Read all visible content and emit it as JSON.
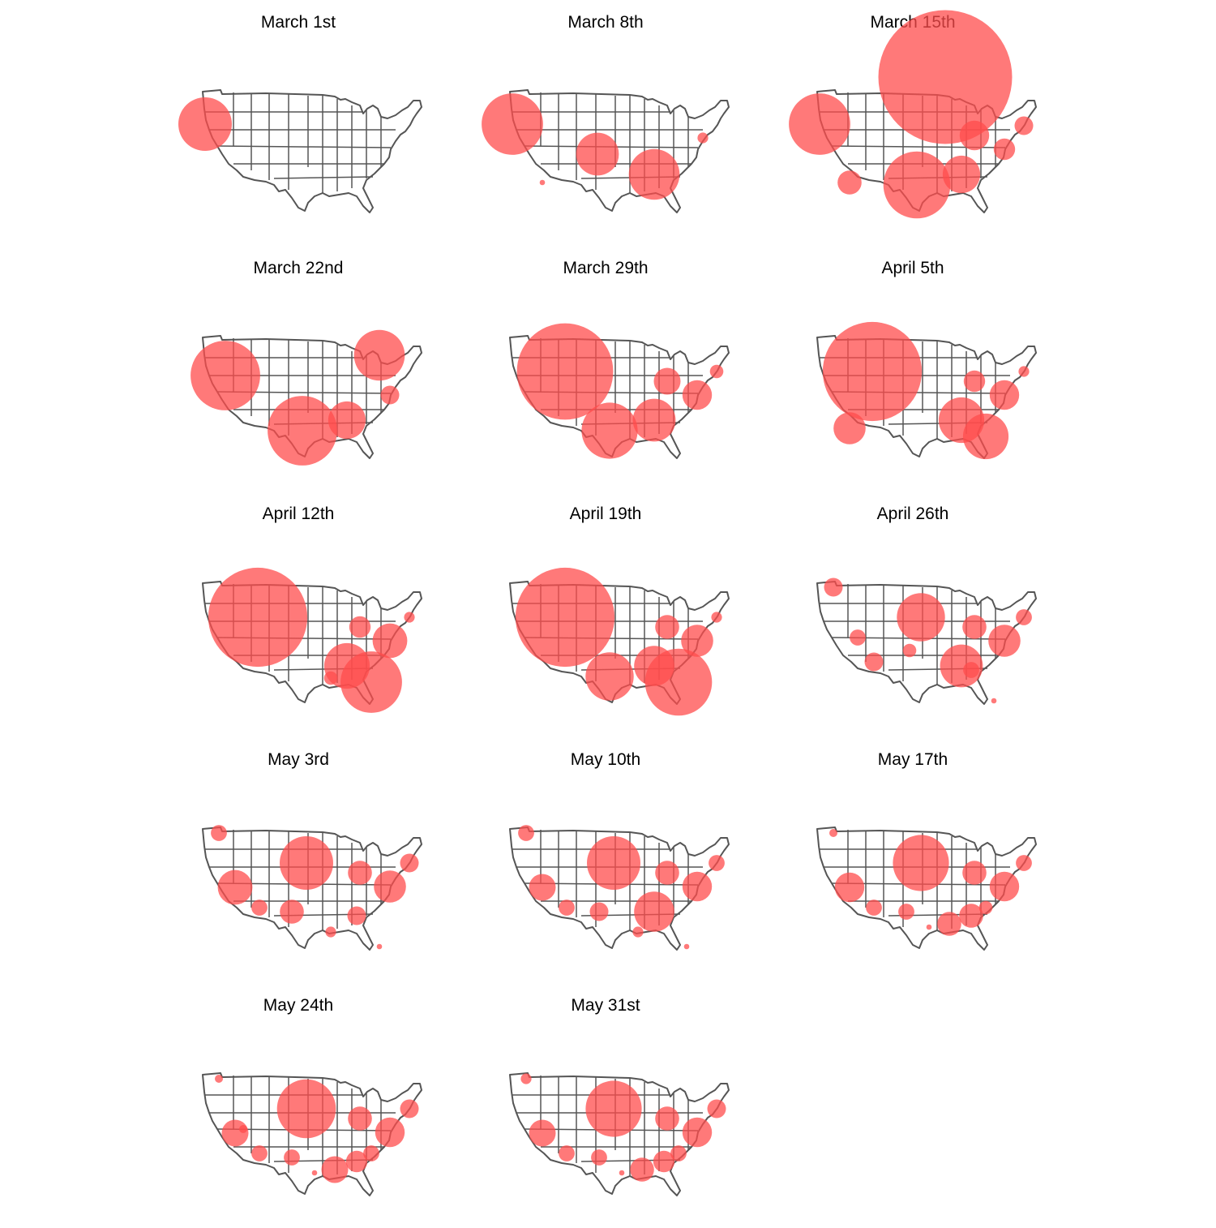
{
  "page": {
    "background": "#ffffff",
    "map_stroke_color": "#555555",
    "bubble_color": "#ff4c4c",
    "bubble_opacity": 0.75
  },
  "panels": [
    {
      "title": "March 1st",
      "bubbles": [
        {
          "region": "pacific-northwest",
          "size": 1.0
        }
      ]
    },
    {
      "title": "March 8th",
      "bubbles": [
        {
          "region": "pacific-northwest",
          "size": 1.15
        },
        {
          "region": "southern-california",
          "size": 0.1
        },
        {
          "region": "southwest",
          "size": 0.8
        },
        {
          "region": "deep-south",
          "size": 0.95
        },
        {
          "region": "northeast",
          "size": 0.2
        }
      ]
    },
    {
      "title": "March 15th",
      "bubbles": [
        {
          "region": "pacific-northwest",
          "size": 1.15
        },
        {
          "region": "northern-plains",
          "size": 2.5
        },
        {
          "region": "southern-california",
          "size": 0.45
        },
        {
          "region": "texas",
          "size": 1.25
        },
        {
          "region": "great-lakes",
          "size": 0.55
        },
        {
          "region": "deep-south",
          "size": 0.7
        },
        {
          "region": "mid-atlantic",
          "size": 0.4
        },
        {
          "region": "new-england",
          "size": 0.35
        }
      ]
    },
    {
      "title": "March 22nd",
      "bubbles": [
        {
          "region": "west-coast",
          "size": 1.3
        },
        {
          "region": "texas",
          "size": 1.3
        },
        {
          "region": "michigan",
          "size": 0.95
        },
        {
          "region": "deep-south",
          "size": 0.7
        },
        {
          "region": "mid-atlantic",
          "size": 0.35
        }
      ]
    },
    {
      "title": "March 29th",
      "bubbles": [
        {
          "region": "northwest-large",
          "size": 1.8
        },
        {
          "region": "texas",
          "size": 1.05
        },
        {
          "region": "deep-south",
          "size": 0.8
        },
        {
          "region": "great-lakes",
          "size": 0.5
        },
        {
          "region": "mid-atlantic",
          "size": 0.55
        },
        {
          "region": "new-england",
          "size": 0.25
        }
      ]
    },
    {
      "title": "April 5th",
      "bubbles": [
        {
          "region": "northwest-large",
          "size": 1.85
        },
        {
          "region": "southern-california",
          "size": 0.6
        },
        {
          "region": "deep-south",
          "size": 0.85
        },
        {
          "region": "florida",
          "size": 0.85
        },
        {
          "region": "great-lakes",
          "size": 0.4
        },
        {
          "region": "mid-atlantic",
          "size": 0.55
        },
        {
          "region": "new-england",
          "size": 0.2
        }
      ]
    },
    {
      "title": "April 12th",
      "bubbles": [
        {
          "region": "northwest-large",
          "size": 1.85
        },
        {
          "region": "deep-south",
          "size": 0.85
        },
        {
          "region": "florida",
          "size": 1.15
        },
        {
          "region": "great-lakes",
          "size": 0.4
        },
        {
          "region": "mid-atlantic",
          "size": 0.65
        },
        {
          "region": "new-england",
          "size": 0.2
        },
        {
          "region": "gulf-coast",
          "size": 0.25
        }
      ]
    },
    {
      "title": "April 19th",
      "bubbles": [
        {
          "region": "northwest-large",
          "size": 1.85
        },
        {
          "region": "texas",
          "size": 0.9
        },
        {
          "region": "deep-south",
          "size": 0.75
        },
        {
          "region": "florida",
          "size": 1.25
        },
        {
          "region": "great-lakes",
          "size": 0.45
        },
        {
          "region": "mid-atlantic",
          "size": 0.6
        },
        {
          "region": "new-england",
          "size": 0.2
        }
      ]
    },
    {
      "title": "April 26th",
      "bubbles": [
        {
          "region": "seattle",
          "size": 0.35
        },
        {
          "region": "nevada",
          "size": 0.3
        },
        {
          "region": "arizona",
          "size": 0.35
        },
        {
          "region": "central-plains",
          "size": 0.9
        },
        {
          "region": "oklahoma",
          "size": 0.25
        },
        {
          "region": "deep-south",
          "size": 0.8
        },
        {
          "region": "great-lakes",
          "size": 0.45
        },
        {
          "region": "mid-atlantic",
          "size": 0.6
        },
        {
          "region": "new-england",
          "size": 0.3
        },
        {
          "region": "georgia",
          "size": 0.3
        },
        {
          "region": "south-florida",
          "size": 0.1
        }
      ]
    },
    {
      "title": "May 3rd",
      "bubbles": [
        {
          "region": "seattle",
          "size": 0.3
        },
        {
          "region": "california-central",
          "size": 0.65
        },
        {
          "region": "arizona",
          "size": 0.3
        },
        {
          "region": "central-plains",
          "size": 1.0
        },
        {
          "region": "texas-panhandle",
          "size": 0.45
        },
        {
          "region": "louisiana",
          "size": 0.2
        },
        {
          "region": "great-lakes",
          "size": 0.45
        },
        {
          "region": "mid-atlantic",
          "size": 0.6
        },
        {
          "region": "new-england",
          "size": 0.35
        },
        {
          "region": "georgia",
          "size": 0.35
        },
        {
          "region": "south-florida",
          "size": 0.1
        }
      ]
    },
    {
      "title": "May 10th",
      "bubbles": [
        {
          "region": "seattle",
          "size": 0.3
        },
        {
          "region": "california-central",
          "size": 0.5
        },
        {
          "region": "arizona",
          "size": 0.3
        },
        {
          "region": "central-plains",
          "size": 1.0
        },
        {
          "region": "texas-panhandle",
          "size": 0.35
        },
        {
          "region": "deep-south",
          "size": 0.75
        },
        {
          "region": "louisiana",
          "size": 0.2
        },
        {
          "region": "great-lakes",
          "size": 0.45
        },
        {
          "region": "mid-atlantic",
          "size": 0.55
        },
        {
          "region": "new-england",
          "size": 0.3
        },
        {
          "region": "south-florida",
          "size": 0.1
        }
      ]
    },
    {
      "title": "May 17th",
      "bubbles": [
        {
          "region": "seattle",
          "size": 0.15
        },
        {
          "region": "california-central",
          "size": 0.55
        },
        {
          "region": "arizona",
          "size": 0.3
        },
        {
          "region": "central-plains",
          "size": 1.05
        },
        {
          "region": "texas-panhandle",
          "size": 0.3
        },
        {
          "region": "alabama",
          "size": 0.45
        },
        {
          "region": "georgia",
          "size": 0.45
        },
        {
          "region": "carolinas",
          "size": 0.25
        },
        {
          "region": "great-lakes",
          "size": 0.45
        },
        {
          "region": "mid-atlantic",
          "size": 0.55
        },
        {
          "region": "new-england",
          "size": 0.3
        },
        {
          "region": "gulf-small",
          "size": 0.1
        }
      ]
    },
    {
      "title": "May 24th",
      "bubbles": [
        {
          "region": "seattle",
          "size": 0.15
        },
        {
          "region": "california-central",
          "size": 0.5
        },
        {
          "region": "nevada",
          "size": 0.15
        },
        {
          "region": "arizona",
          "size": 0.3
        },
        {
          "region": "central-plains",
          "size": 1.1
        },
        {
          "region": "texas-panhandle",
          "size": 0.3
        },
        {
          "region": "alabama",
          "size": 0.5
        },
        {
          "region": "georgia",
          "size": 0.4
        },
        {
          "region": "carolinas",
          "size": 0.3
        },
        {
          "region": "great-lakes",
          "size": 0.45
        },
        {
          "region": "mid-atlantic",
          "size": 0.55
        },
        {
          "region": "new-england",
          "size": 0.35
        },
        {
          "region": "gulf-small",
          "size": 0.1
        }
      ]
    },
    {
      "title": "May 31st",
      "bubbles": [
        {
          "region": "seattle",
          "size": 0.2
        },
        {
          "region": "california-central",
          "size": 0.5
        },
        {
          "region": "arizona",
          "size": 0.3
        },
        {
          "region": "central-plains",
          "size": 1.05
        },
        {
          "region": "texas-panhandle",
          "size": 0.3
        },
        {
          "region": "alabama",
          "size": 0.45
        },
        {
          "region": "georgia",
          "size": 0.4
        },
        {
          "region": "carolinas",
          "size": 0.3
        },
        {
          "region": "great-lakes",
          "size": 0.45
        },
        {
          "region": "mid-atlantic",
          "size": 0.55
        },
        {
          "region": "new-england",
          "size": 0.35
        },
        {
          "region": "gulf-small",
          "size": 0.1
        }
      ]
    }
  ]
}
